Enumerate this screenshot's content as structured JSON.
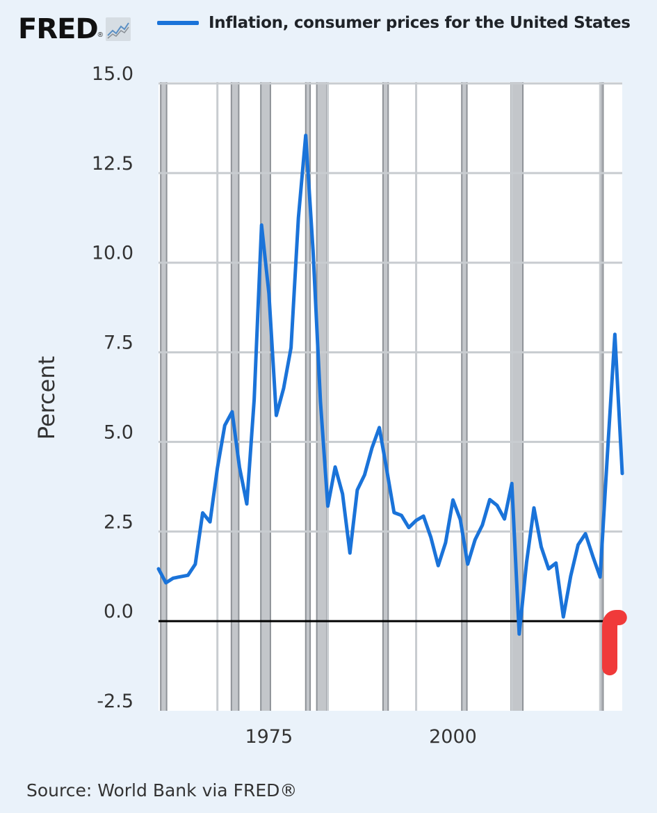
{
  "brand": {
    "logo_text": "FRED",
    "logo_mark": "®"
  },
  "legend": {
    "label": "Inflation, consumer prices for the United States"
  },
  "source": "Source: World Bank via FRED®",
  "colors": {
    "line": "#1a73d9",
    "zero_line": "#000000",
    "recession": "#b9bcc0",
    "highlight": "#f03a3a",
    "background": "#eaf2fa"
  },
  "chart_data": {
    "type": "line",
    "title": "",
    "xlabel": "",
    "ylabel": "Percent",
    "ylim": [
      -2.5,
      15.0
    ],
    "yticks": [
      "15.0",
      "12.5",
      "10.0",
      "7.5",
      "5.0",
      "2.5",
      "0.0",
      "-2.5"
    ],
    "xticks": [
      "1975",
      "2000"
    ],
    "xlim": [
      1960,
      2023
    ],
    "grid": true,
    "recession_bands": [
      [
        1960.3,
        1961.1
      ],
      [
        1969.9,
        1970.9
      ],
      [
        1973.9,
        1975.2
      ],
      [
        1980.0,
        1980.6
      ],
      [
        1981.5,
        1982.9
      ],
      [
        1990.5,
        1991.2
      ],
      [
        2001.2,
        2001.9
      ],
      [
        2007.9,
        2009.5
      ],
      [
        2020.1,
        2020.4
      ]
    ],
    "highlight": {
      "x": [
        2021.3,
        2022.6
      ],
      "y": [
        -1.3,
        0.1
      ]
    },
    "series": [
      {
        "name": "Inflation, consumer prices for the United States",
        "x": [
          1960,
          1961,
          1962,
          1963,
          1964,
          1965,
          1966,
          1967,
          1968,
          1969,
          1970,
          1971,
          1972,
          1973,
          1974,
          1975,
          1976,
          1977,
          1978,
          1979,
          1980,
          1981,
          1982,
          1983,
          1984,
          1985,
          1986,
          1987,
          1988,
          1989,
          1990,
          1991,
          1992,
          1993,
          1994,
          1995,
          1996,
          1997,
          1998,
          1999,
          2000,
          2001,
          2002,
          2003,
          2004,
          2005,
          2006,
          2007,
          2008,
          2009,
          2010,
          2011,
          2012,
          2013,
          2014,
          2015,
          2016,
          2017,
          2018,
          2019,
          2020,
          2021,
          2022,
          2023
        ],
        "values": [
          1.46,
          1.07,
          1.2,
          1.24,
          1.28,
          1.59,
          3.02,
          2.77,
          4.27,
          5.46,
          5.84,
          4.29,
          3.27,
          6.18,
          11.05,
          9.14,
          5.74,
          6.5,
          7.63,
          11.25,
          13.55,
          10.33,
          6.13,
          3.21,
          4.3,
          3.55,
          1.9,
          3.66,
          4.08,
          4.83,
          5.4,
          4.23,
          3.03,
          2.95,
          2.61,
          2.81,
          2.93,
          2.34,
          1.55,
          2.19,
          3.38,
          2.83,
          1.59,
          2.27,
          2.68,
          3.39,
          3.23,
          2.85,
          3.84,
          -0.36,
          1.64,
          3.16,
          2.07,
          1.46,
          1.62,
          0.12,
          1.26,
          2.13,
          2.44,
          1.81,
          1.23,
          4.7,
          8.0,
          4.12
        ]
      }
    ]
  }
}
